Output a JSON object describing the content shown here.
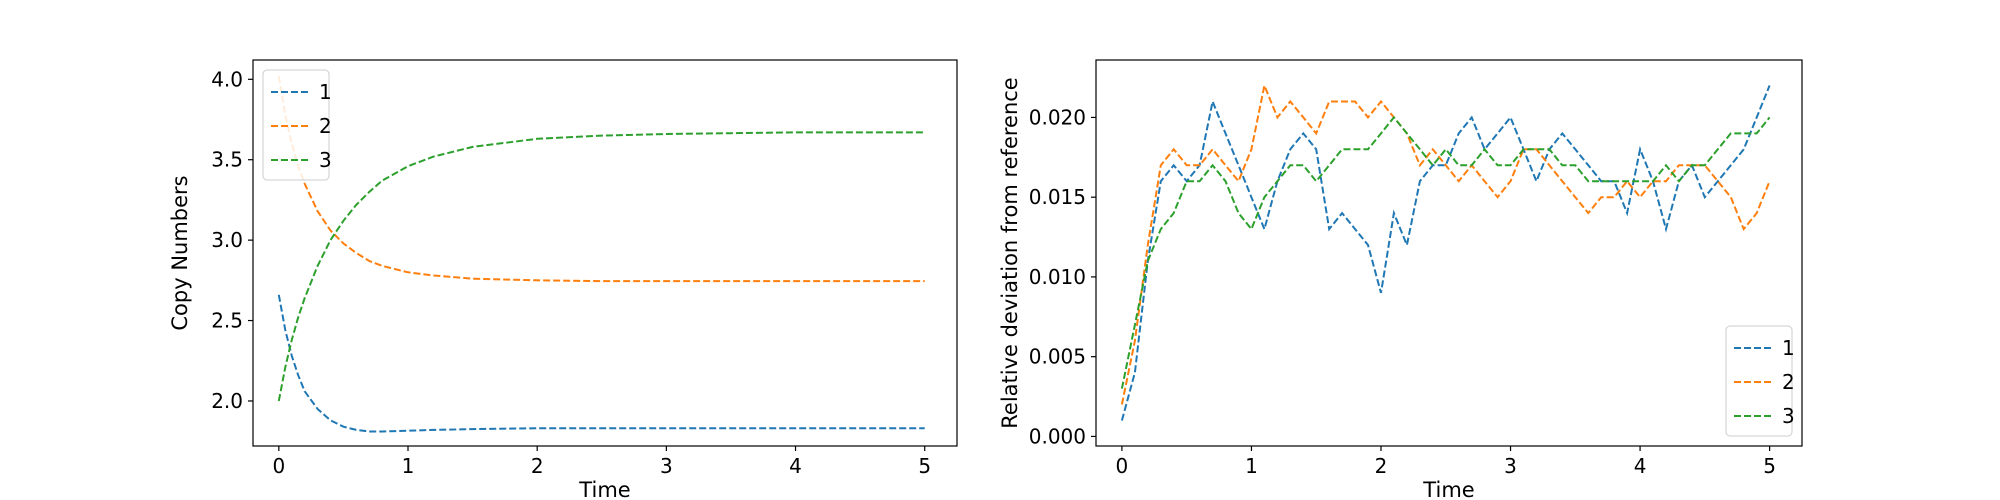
{
  "chart_data": [
    {
      "type": "line",
      "title": "",
      "xlabel": "Time",
      "ylabel": "Copy Numbers",
      "xlim": [
        -0.2,
        5.25
      ],
      "ylim": [
        1.72,
        4.12
      ],
      "xticks": [
        0,
        1,
        2,
        3,
        4,
        5
      ],
      "yticks": [
        2.0,
        2.5,
        3.0,
        3.5,
        4.0
      ],
      "xtick_labels": [
        "0",
        "1",
        "2",
        "3",
        "4",
        "5"
      ],
      "ytick_labels": [
        "2.0",
        "2.5",
        "3.0",
        "3.5",
        "4.0"
      ],
      "grid": false,
      "legend_placement": "upper-left",
      "series": [
        {
          "name": "1",
          "color": "#1f77b4",
          "x": [
            0,
            0.05,
            0.1,
            0.15,
            0.2,
            0.3,
            0.4,
            0.5,
            0.6,
            0.7,
            0.8,
            1.0,
            1.2,
            1.5,
            2.0,
            2.5,
            3.0,
            3.5,
            4.0,
            4.5,
            5.0
          ],
          "y": [
            2.66,
            2.44,
            2.28,
            2.16,
            2.06,
            1.95,
            1.88,
            1.84,
            1.82,
            1.81,
            1.81,
            1.815,
            1.82,
            1.825,
            1.83,
            1.83,
            1.83,
            1.83,
            1.83,
            1.83,
            1.83
          ]
        },
        {
          "name": "2",
          "color": "#ff7f0e",
          "x": [
            0,
            0.05,
            0.1,
            0.15,
            0.2,
            0.3,
            0.4,
            0.5,
            0.6,
            0.7,
            0.8,
            1.0,
            1.2,
            1.5,
            2.0,
            2.5,
            3.0,
            3.5,
            4.0,
            4.5,
            5.0
          ],
          "y": [
            4.02,
            3.78,
            3.6,
            3.46,
            3.35,
            3.18,
            3.06,
            2.98,
            2.92,
            2.87,
            2.84,
            2.8,
            2.78,
            2.76,
            2.75,
            2.745,
            2.745,
            2.745,
            2.745,
            2.745,
            2.745
          ]
        },
        {
          "name": "3",
          "color": "#2ca02c",
          "x": [
            0,
            0.05,
            0.1,
            0.15,
            0.2,
            0.3,
            0.4,
            0.5,
            0.6,
            0.7,
            0.8,
            1.0,
            1.2,
            1.5,
            2.0,
            2.5,
            3.0,
            3.5,
            4.0,
            4.5,
            5.0
          ],
          "y": [
            2.0,
            2.21,
            2.38,
            2.52,
            2.64,
            2.84,
            3.0,
            3.12,
            3.22,
            3.3,
            3.37,
            3.46,
            3.52,
            3.58,
            3.63,
            3.65,
            3.66,
            3.665,
            3.67,
            3.67,
            3.67
          ]
        }
      ]
    },
    {
      "type": "line",
      "title": "",
      "xlabel": "Time",
      "ylabel": "Relative deviation from reference",
      "xlim": [
        -0.2,
        5.25
      ],
      "ylim": [
        -0.0006,
        0.0236
      ],
      "xticks": [
        0,
        1,
        2,
        3,
        4,
        5
      ],
      "yticks": [
        0.0,
        0.005,
        0.01,
        0.015,
        0.02
      ],
      "xtick_labels": [
        "0",
        "1",
        "2",
        "3",
        "4",
        "5"
      ],
      "ytick_labels": [
        "0.000",
        "0.005",
        "0.010",
        "0.015",
        "0.020"
      ],
      "grid": false,
      "legend_placement": "lower-right",
      "series": [
        {
          "name": "1",
          "color": "#1f77b4",
          "x": [
            0,
            0.1,
            0.2,
            0.3,
            0.4,
            0.5,
            0.6,
            0.7,
            0.8,
            0.9,
            1.0,
            1.1,
            1.2,
            1.3,
            1.4,
            1.5,
            1.6,
            1.7,
            1.8,
            1.9,
            2.0,
            2.1,
            2.2,
            2.3,
            2.4,
            2.5,
            2.6,
            2.7,
            2.8,
            2.9,
            3.0,
            3.1,
            3.2,
            3.3,
            3.4,
            3.5,
            3.6,
            3.7,
            3.8,
            3.9,
            4.0,
            4.1,
            4.2,
            4.3,
            4.4,
            4.5,
            4.6,
            4.7,
            4.8,
            4.9,
            5.0
          ],
          "y": [
            0.001,
            0.004,
            0.011,
            0.016,
            0.017,
            0.016,
            0.017,
            0.021,
            0.019,
            0.017,
            0.015,
            0.013,
            0.016,
            0.018,
            0.019,
            0.018,
            0.013,
            0.014,
            0.013,
            0.012,
            0.009,
            0.014,
            0.012,
            0.016,
            0.017,
            0.017,
            0.019,
            0.02,
            0.018,
            0.019,
            0.02,
            0.018,
            0.016,
            0.018,
            0.019,
            0.018,
            0.017,
            0.016,
            0.016,
            0.014,
            0.018,
            0.016,
            0.013,
            0.016,
            0.017,
            0.015,
            0.016,
            0.017,
            0.018,
            0.02,
            0.022
          ]
        },
        {
          "name": "2",
          "color": "#ff7f0e",
          "x": [
            0,
            0.1,
            0.2,
            0.3,
            0.4,
            0.5,
            0.6,
            0.7,
            0.8,
            0.9,
            1.0,
            1.1,
            1.2,
            1.3,
            1.4,
            1.5,
            1.6,
            1.7,
            1.8,
            1.9,
            2.0,
            2.1,
            2.2,
            2.3,
            2.4,
            2.5,
            2.6,
            2.7,
            2.8,
            2.9,
            3.0,
            3.1,
            3.2,
            3.3,
            3.4,
            3.5,
            3.6,
            3.7,
            3.8,
            3.9,
            4.0,
            4.1,
            4.2,
            4.3,
            4.4,
            4.5,
            4.6,
            4.7,
            4.8,
            4.9,
            5.0
          ],
          "y": [
            0.002,
            0.006,
            0.012,
            0.017,
            0.018,
            0.017,
            0.017,
            0.018,
            0.017,
            0.016,
            0.018,
            0.022,
            0.02,
            0.021,
            0.02,
            0.019,
            0.021,
            0.021,
            0.021,
            0.02,
            0.021,
            0.02,
            0.019,
            0.017,
            0.018,
            0.017,
            0.016,
            0.017,
            0.016,
            0.015,
            0.016,
            0.018,
            0.018,
            0.017,
            0.016,
            0.015,
            0.014,
            0.015,
            0.015,
            0.016,
            0.015,
            0.016,
            0.016,
            0.017,
            0.017,
            0.017,
            0.016,
            0.015,
            0.013,
            0.014,
            0.016
          ]
        },
        {
          "name": "3",
          "color": "#2ca02c",
          "x": [
            0,
            0.1,
            0.2,
            0.3,
            0.4,
            0.5,
            0.6,
            0.7,
            0.8,
            0.9,
            1.0,
            1.1,
            1.2,
            1.3,
            1.4,
            1.5,
            1.6,
            1.7,
            1.8,
            1.9,
            2.0,
            2.1,
            2.2,
            2.3,
            2.4,
            2.5,
            2.6,
            2.7,
            2.8,
            2.9,
            3.0,
            3.1,
            3.2,
            3.3,
            3.4,
            3.5,
            3.6,
            3.7,
            3.8,
            3.9,
            4.0,
            4.1,
            4.2,
            4.3,
            4.4,
            4.5,
            4.6,
            4.7,
            4.8,
            4.9,
            5.0
          ],
          "y": [
            0.003,
            0.007,
            0.011,
            0.013,
            0.014,
            0.016,
            0.016,
            0.017,
            0.016,
            0.014,
            0.013,
            0.015,
            0.016,
            0.017,
            0.017,
            0.016,
            0.017,
            0.018,
            0.018,
            0.018,
            0.019,
            0.02,
            0.019,
            0.018,
            0.017,
            0.018,
            0.017,
            0.017,
            0.018,
            0.017,
            0.017,
            0.018,
            0.018,
            0.018,
            0.017,
            0.017,
            0.016,
            0.016,
            0.016,
            0.016,
            0.016,
            0.016,
            0.017,
            0.016,
            0.017,
            0.017,
            0.018,
            0.019,
            0.019,
            0.019,
            0.02
          ]
        }
      ]
    }
  ]
}
